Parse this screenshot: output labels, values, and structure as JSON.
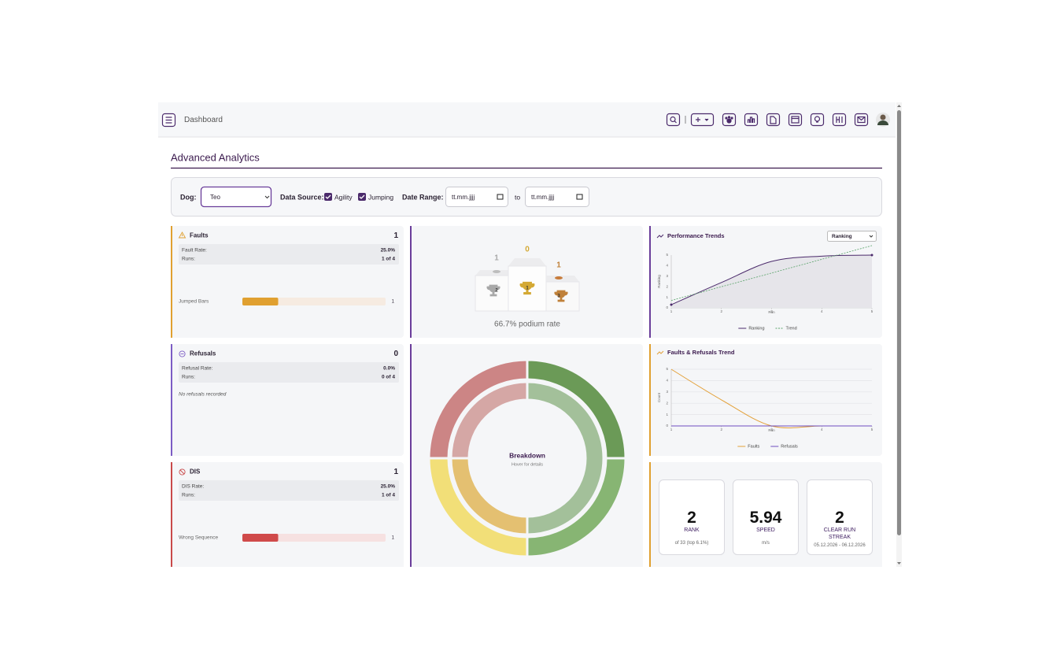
{
  "header": {
    "title": "Dashboard"
  },
  "page_title": "Advanced Analytics",
  "filters": {
    "dog_label": "Dog:",
    "dog": "Teo",
    "source_label": "Data Source:",
    "sources": [
      "Agility",
      "Jumping"
    ],
    "range_label": "Date Range:",
    "from": "tt.mm.jjjj",
    "to_label": "to",
    "to": "tt.mm.jjjj"
  },
  "cards": [
    {
      "title": "Faults",
      "count": 1,
      "rate_label": "Fault Rate:",
      "rate": "25.0%",
      "runs_label": "Runs:",
      "runs": "1 of 4",
      "bar": {
        "label": "Jumped Bars",
        "value": 1,
        "xlim": [
          0,
          4
        ]
      }
    },
    {
      "title": "Refusals",
      "count": 0,
      "rate_label": "Refusal Rate:",
      "rate": "0.0%",
      "runs_label": "Runs:",
      "runs": "0 of 4",
      "note": "No refusals recorded"
    },
    {
      "title": "DIS",
      "count": 1,
      "rate_label": "DIS Rate:",
      "rate": "25.0%",
      "runs_label": "Runs:",
      "runs": "1 of 4",
      "bar": {
        "label": "Wrong Sequence",
        "value": 1,
        "xlim": [
          0,
          4
        ]
      }
    }
  ],
  "podium": {
    "places": [
      {
        "place": 2,
        "count": 1
      },
      {
        "place": 1,
        "count": 0
      },
      {
        "place": 3,
        "count": 1
      }
    ],
    "rate_text": "66.7% podium rate"
  },
  "chart_data": [
    {
      "type": "line",
      "title": "Performance Trends",
      "metric": "Ranking",
      "x_label": "Run",
      "y_label": "Ranking",
      "x": [
        1,
        2,
        3,
        4,
        5
      ],
      "xlim": [
        1,
        5
      ],
      "xticks": [
        1,
        2,
        3,
        4,
        5
      ],
      "ylim": [
        0,
        5
      ],
      "yticks": [
        0,
        1,
        2,
        3,
        4,
        5
      ],
      "grid": false,
      "legend": "bottom",
      "series": [
        {
          "name": "Ranking",
          "color": "#4b2a6b",
          "values": [
            0.3,
            2.4,
            4.4,
            4.9,
            5
          ],
          "area": true
        },
        {
          "name": "Trend",
          "color": "#5aa36a",
          "values": [
            0.7,
            2.0,
            3.3,
            4.6,
            5.9
          ],
          "dash": true
        }
      ]
    },
    {
      "type": "line",
      "title": "Faults & Refusals Trend",
      "x_label": "Run",
      "y_label": "Count",
      "x": [
        1,
        2,
        3,
        4,
        5
      ],
      "xlim": [
        1,
        5
      ],
      "xticks": [
        1,
        2,
        3,
        4,
        5
      ],
      "ylim": [
        0,
        5
      ],
      "yticks": [
        0,
        1,
        2,
        3,
        4,
        5
      ],
      "grid": true,
      "legend": "bottom",
      "series": [
        {
          "name": "Faults",
          "color": "#e3a13a",
          "values": [
            5,
            2.3,
            0,
            0,
            0
          ]
        },
        {
          "name": "Refusals",
          "color": "#6f4fc0",
          "values": [
            0,
            0,
            0,
            0,
            0
          ]
        }
      ]
    },
    {
      "type": "pie",
      "title": "Breakdown",
      "subtitle": "Hover for details",
      "rings": [
        {
          "values": [
            1,
            1,
            1,
            1
          ],
          "colors": [
            "#6b9a57",
            "#87b573",
            "#f2df78",
            "#cc8585"
          ]
        },
        {
          "values": [
            2,
            1,
            1
          ],
          "colors": [
            "#a3c09a",
            "#e4c071",
            "#d5a7a5"
          ]
        }
      ]
    }
  ],
  "stats": [
    {
      "value": 2,
      "label": "RANK",
      "sub": "of 33 (top 6.1%)"
    },
    {
      "value": 5.94,
      "label": "SPEED",
      "sub": "m/s"
    },
    {
      "value": 2,
      "label": "CLEAR RUN STREAK",
      "sub": "05.12.2026 - 06.12.2026"
    }
  ]
}
